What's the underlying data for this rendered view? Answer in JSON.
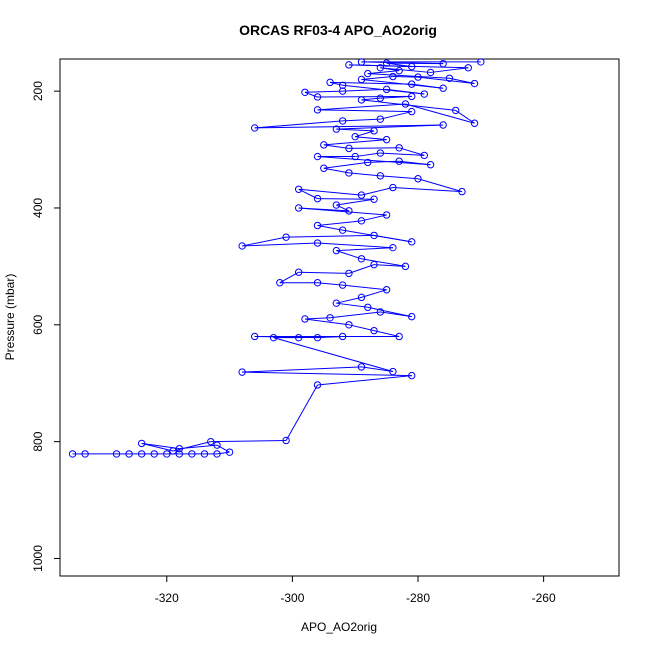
{
  "chart_data": {
    "type": "scatter",
    "title": "ORCAS RF03-4 APO_AO2orig",
    "xlabel": "APO_AO2orig",
    "ylabel": "Pressure (mbar)",
    "xlim": [
      -337,
      -248
    ],
    "ylim": [
      1030,
      145
    ],
    "y_reversed": true,
    "x_ticks": [
      -320,
      -300,
      -280,
      -260
    ],
    "y_ticks": [
      200,
      400,
      600,
      800,
      1000
    ],
    "grid": false,
    "series_color": "#0000ff",
    "marker": "open-circle",
    "connected": true,
    "series": [
      {
        "points": [
          [
            -335,
            821
          ],
          [
            -333,
            821
          ],
          [
            -328,
            821
          ],
          [
            -326,
            821
          ],
          [
            -324,
            821
          ],
          [
            -322,
            821
          ],
          [
            -320,
            821
          ],
          [
            -318,
            821
          ],
          [
            -316,
            821
          ],
          [
            -314,
            821
          ],
          [
            -312,
            821
          ],
          [
            -310,
            818
          ],
          [
            -312,
            806
          ],
          [
            -318,
            812
          ],
          [
            -324,
            803
          ],
          [
            -319,
            816
          ],
          [
            -313,
            800
          ],
          [
            -301,
            798
          ],
          [
            -296,
            703
          ],
          [
            -281,
            687
          ],
          [
            -308,
            681
          ],
          [
            -289,
            672
          ],
          [
            -284,
            680
          ],
          [
            -303,
            622
          ],
          [
            -299,
            622
          ],
          [
            -292,
            620
          ],
          [
            -296,
            622
          ],
          [
            -306,
            620
          ],
          [
            -283,
            620
          ],
          [
            -287,
            610
          ],
          [
            -291,
            600
          ],
          [
            -298,
            590
          ],
          [
            -294,
            588
          ],
          [
            -286,
            578
          ],
          [
            -281,
            586
          ],
          [
            -288,
            570
          ],
          [
            -293,
            563
          ],
          [
            -289,
            553
          ],
          [
            -285,
            540
          ],
          [
            -292,
            532
          ],
          [
            -296,
            528
          ],
          [
            -302,
            528
          ],
          [
            -299,
            510
          ],
          [
            -291,
            512
          ],
          [
            -287,
            497
          ],
          [
            -282,
            500
          ],
          [
            -289,
            487
          ],
          [
            -293,
            473
          ],
          [
            -284,
            468
          ],
          [
            -296,
            460
          ],
          [
            -308,
            465
          ],
          [
            -301,
            450
          ],
          [
            -287,
            447
          ],
          [
            -281,
            458
          ],
          [
            -292,
            438
          ],
          [
            -296,
            430
          ],
          [
            -289,
            422
          ],
          [
            -285,
            412
          ],
          [
            -299,
            400
          ],
          [
            -291,
            405
          ],
          [
            -293,
            395
          ],
          [
            -287,
            385
          ],
          [
            -296,
            384
          ],
          [
            -299,
            368
          ],
          [
            -289,
            378
          ],
          [
            -284,
            365
          ],
          [
            -273,
            372
          ],
          [
            -280,
            350
          ],
          [
            -286,
            345
          ],
          [
            -291,
            340
          ],
          [
            -295,
            332
          ],
          [
            -288,
            322
          ],
          [
            -283,
            320
          ],
          [
            -278,
            326
          ],
          [
            -296,
            312
          ],
          [
            -290,
            312
          ],
          [
            -286,
            306
          ],
          [
            -279,
            310
          ],
          [
            -283,
            297
          ],
          [
            -291,
            298
          ],
          [
            -295,
            292
          ],
          [
            -285,
            283
          ],
          [
            -290,
            278
          ],
          [
            -287,
            268
          ],
          [
            -293,
            265
          ],
          [
            -276,
            258
          ],
          [
            -306,
            263
          ],
          [
            -292,
            251
          ],
          [
            -286,
            248
          ],
          [
            -281,
            235
          ],
          [
            -296,
            232
          ],
          [
            -282,
            222
          ],
          [
            -271,
            255
          ],
          [
            -274,
            233
          ],
          [
            -289,
            215
          ],
          [
            -286,
            212
          ],
          [
            -281,
            209
          ],
          [
            -296,
            210
          ],
          [
            -298,
            202
          ],
          [
            -292,
            200
          ],
          [
            -285,
            197
          ],
          [
            -279,
            205
          ],
          [
            -292,
            190
          ],
          [
            -294,
            185
          ],
          [
            -281,
            188
          ],
          [
            -276,
            195
          ],
          [
            -289,
            180
          ],
          [
            -284,
            175
          ],
          [
            -280,
            176
          ],
          [
            -271,
            187
          ],
          [
            -275,
            178
          ],
          [
            -288,
            170
          ],
          [
            -283,
            165
          ],
          [
            -286,
            160
          ],
          [
            -278,
            168
          ],
          [
            -272,
            160
          ],
          [
            -291,
            155
          ],
          [
            -281,
            158
          ],
          [
            -285,
            152
          ],
          [
            -276,
            153
          ],
          [
            -289,
            150
          ],
          [
            -270,
            150
          ]
        ]
      }
    ]
  }
}
